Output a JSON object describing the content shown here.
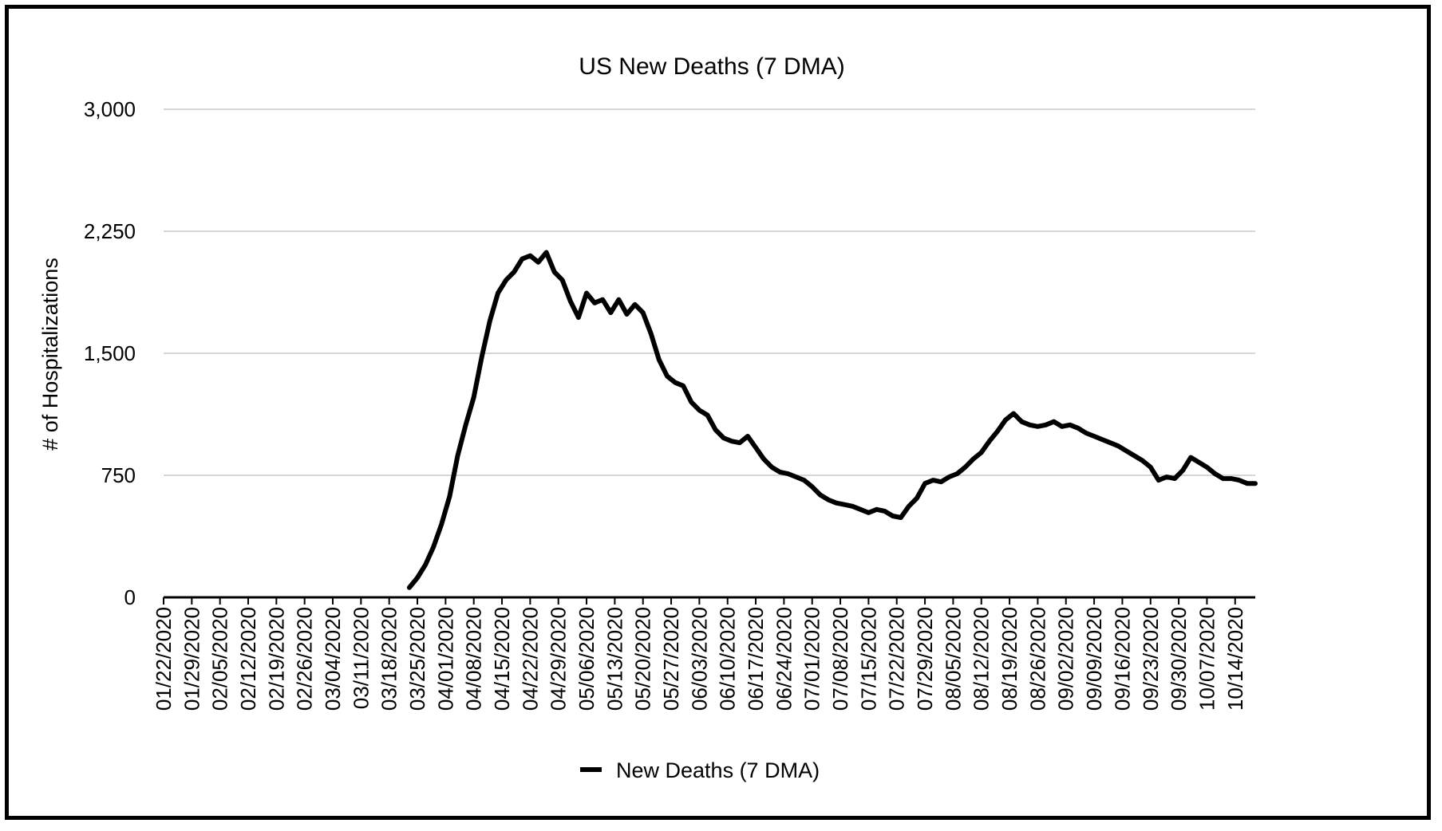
{
  "chart_data": {
    "type": "line",
    "title": "US New Deaths (7 DMA)",
    "xlabel": "",
    "ylabel": "# of Hospitalizations",
    "ylim": [
      0,
      3000
    ],
    "yticks": [
      0,
      750,
      1500,
      2250,
      3000
    ],
    "ytick_labels": [
      "0",
      "750",
      "1,500",
      "2,250",
      "3,000"
    ],
    "grid": "horizontal",
    "legend_position": "bottom",
    "color": "#000000",
    "x_start_date": "01/22/2020",
    "xtick_labels": [
      "01/22/2020",
      "01/29/2020",
      "02/05/2020",
      "02/12/2020",
      "02/19/2020",
      "02/26/2020",
      "03/04/2020",
      "03/11/2020",
      "03/18/2020",
      "03/25/2020",
      "04/01/2020",
      "04/08/2020",
      "04/15/2020",
      "04/22/2020",
      "04/29/2020",
      "05/06/2020",
      "05/13/2020",
      "05/20/2020",
      "05/27/2020",
      "06/03/2020",
      "06/10/2020",
      "06/17/2020",
      "06/24/2020",
      "07/01/2020",
      "07/08/2020",
      "07/15/2020",
      "07/22/2020",
      "07/29/2020",
      "08/05/2020",
      "08/12/2020",
      "08/19/2020",
      "08/26/2020",
      "09/02/2020",
      "09/09/2020",
      "09/16/2020",
      "09/23/2020",
      "09/30/2020",
      "10/07/2020",
      "10/14/2020"
    ],
    "series": [
      {
        "name": "New Deaths (7 DMA)",
        "x_end_date": "10/19/2020",
        "points": [
          [
            "03/23/2020",
            60
          ],
          [
            "03/25/2020",
            120
          ],
          [
            "03/27/2020",
            200
          ],
          [
            "03/29/2020",
            310
          ],
          [
            "03/31/2020",
            450
          ],
          [
            "04/02/2020",
            620
          ],
          [
            "04/04/2020",
            870
          ],
          [
            "04/06/2020",
            1060
          ],
          [
            "04/08/2020",
            1230
          ],
          [
            "04/10/2020",
            1480
          ],
          [
            "04/12/2020",
            1700
          ],
          [
            "04/14/2020",
            1870
          ],
          [
            "04/16/2020",
            1950
          ],
          [
            "04/18/2020",
            2000
          ],
          [
            "04/20/2020",
            2080
          ],
          [
            "04/22/2020",
            2100
          ],
          [
            "04/24/2020",
            2060
          ],
          [
            "04/26/2020",
            2120
          ],
          [
            "04/28/2020",
            2000
          ],
          [
            "04/30/2020",
            1950
          ],
          [
            "05/02/2020",
            1820
          ],
          [
            "05/04/2020",
            1720
          ],
          [
            "05/06/2020",
            1870
          ],
          [
            "05/08/2020",
            1810
          ],
          [
            "05/10/2020",
            1830
          ],
          [
            "05/12/2020",
            1750
          ],
          [
            "05/14/2020",
            1830
          ],
          [
            "05/16/2020",
            1740
          ],
          [
            "05/18/2020",
            1800
          ],
          [
            "05/20/2020",
            1750
          ],
          [
            "05/22/2020",
            1620
          ],
          [
            "05/24/2020",
            1460
          ],
          [
            "05/26/2020",
            1360
          ],
          [
            "05/28/2020",
            1320
          ],
          [
            "05/30/2020",
            1300
          ],
          [
            "06/01/2020",
            1200
          ],
          [
            "06/03/2020",
            1150
          ],
          [
            "06/05/2020",
            1120
          ],
          [
            "06/07/2020",
            1030
          ],
          [
            "06/09/2020",
            980
          ],
          [
            "06/11/2020",
            960
          ],
          [
            "06/13/2020",
            950
          ],
          [
            "06/15/2020",
            990
          ],
          [
            "06/17/2020",
            920
          ],
          [
            "06/19/2020",
            850
          ],
          [
            "06/21/2020",
            800
          ],
          [
            "06/23/2020",
            770
          ],
          [
            "06/25/2020",
            760
          ],
          [
            "06/27/2020",
            740
          ],
          [
            "06/29/2020",
            720
          ],
          [
            "07/01/2020",
            680
          ],
          [
            "07/03/2020",
            630
          ],
          [
            "07/05/2020",
            600
          ],
          [
            "07/07/2020",
            580
          ],
          [
            "07/09/2020",
            570
          ],
          [
            "07/11/2020",
            560
          ],
          [
            "07/13/2020",
            540
          ],
          [
            "07/15/2020",
            520
          ],
          [
            "07/17/2020",
            540
          ],
          [
            "07/19/2020",
            530
          ],
          [
            "07/21/2020",
            500
          ],
          [
            "07/23/2020",
            490
          ],
          [
            "07/25/2020",
            560
          ],
          [
            "07/27/2020",
            610
          ],
          [
            "07/29/2020",
            700
          ],
          [
            "07/31/2020",
            720
          ],
          [
            "08/02/2020",
            710
          ],
          [
            "08/04/2020",
            740
          ],
          [
            "08/06/2020",
            760
          ],
          [
            "08/08/2020",
            800
          ],
          [
            "08/10/2020",
            850
          ],
          [
            "08/12/2020",
            890
          ],
          [
            "08/14/2020",
            960
          ],
          [
            "08/16/2020",
            1020
          ],
          [
            "08/18/2020",
            1090
          ],
          [
            "08/20/2020",
            1130
          ],
          [
            "08/22/2020",
            1080
          ],
          [
            "08/24/2020",
            1060
          ],
          [
            "08/26/2020",
            1050
          ],
          [
            "08/28/2020",
            1060
          ],
          [
            "08/30/2020",
            1080
          ],
          [
            "09/01/2020",
            1050
          ],
          [
            "09/03/2020",
            1060
          ],
          [
            "09/05/2020",
            1040
          ],
          [
            "09/07/2020",
            1010
          ],
          [
            "09/09/2020",
            990
          ],
          [
            "09/11/2020",
            970
          ],
          [
            "09/13/2020",
            950
          ],
          [
            "09/15/2020",
            930
          ],
          [
            "09/17/2020",
            900
          ],
          [
            "09/19/2020",
            870
          ],
          [
            "09/21/2020",
            840
          ],
          [
            "09/23/2020",
            800
          ],
          [
            "09/25/2020",
            720
          ],
          [
            "09/27/2020",
            740
          ],
          [
            "09/29/2020",
            730
          ],
          [
            "10/01/2020",
            780
          ],
          [
            "10/03/2020",
            860
          ],
          [
            "10/05/2020",
            830
          ],
          [
            "10/07/2020",
            800
          ],
          [
            "10/09/2020",
            760
          ],
          [
            "10/11/2020",
            730
          ],
          [
            "10/13/2020",
            730
          ],
          [
            "10/15/2020",
            720
          ],
          [
            "10/17/2020",
            700
          ],
          [
            "10/19/2020",
            700
          ]
        ]
      }
    ]
  }
}
